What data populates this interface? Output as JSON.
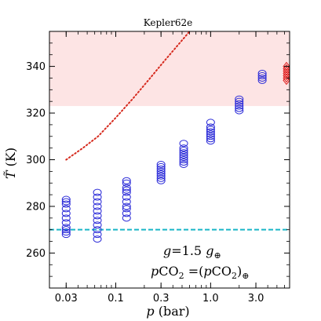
{
  "chart_data": {
    "type": "scatter",
    "title": "Kepler62e",
    "xlabel": "p (bar)",
    "ylabel": "T̃ (K)",
    "xscale": "log",
    "xlim": [
      0.02,
      6.8
    ],
    "ylim": [
      245,
      355
    ],
    "xticks": [
      {
        "value": 0.03,
        "label": "0.03"
      },
      {
        "value": 0.1,
        "label": "0.1"
      },
      {
        "value": 0.3,
        "label": "0.3"
      },
      {
        "value": 1.0,
        "label": "1.0"
      },
      {
        "value": 3.0,
        "label": "3.0"
      }
    ],
    "yticks": [
      260,
      280,
      300,
      320,
      340
    ],
    "shaded_band": {
      "ymin": 323,
      "ymax": 355,
      "color": "#fde4e4"
    },
    "hline": {
      "y": 270,
      "color": "#1ab6c8",
      "style": "dashed"
    },
    "dotted_curve": {
      "color": "#d62a1e",
      "x": [
        0.03,
        0.045,
        0.065,
        0.1,
        0.15,
        0.22,
        0.32,
        0.45,
        0.6
      ],
      "y": [
        300,
        305,
        310,
        318,
        326,
        334,
        342,
        349,
        355
      ]
    },
    "series": [
      {
        "marker": "circle",
        "color": "#2b2bd8",
        "x": [
          0.03,
          0.03,
          0.03,
          0.03,
          0.03,
          0.03,
          0.03,
          0.03,
          0.03,
          0.03,
          0.03,
          0.064,
          0.064,
          0.064,
          0.064,
          0.064,
          0.064,
          0.064,
          0.064,
          0.064,
          0.064,
          0.064,
          0.13,
          0.13,
          0.13,
          0.13,
          0.13,
          0.13,
          0.13,
          0.13,
          0.13,
          0.13,
          0.13,
          0.3,
          0.3,
          0.3,
          0.3,
          0.3,
          0.3,
          0.3,
          0.3,
          0.52,
          0.52,
          0.52,
          0.52,
          0.52,
          0.52,
          0.52,
          0.52,
          0.52,
          1.0,
          1.0,
          1.0,
          1.0,
          1.0,
          1.0,
          1.0,
          1.0,
          2.0,
          2.0,
          2.0,
          2.0,
          2.0,
          2.0,
          3.5,
          3.5,
          3.5,
          3.5
        ],
        "y": [
          283,
          281,
          279,
          277,
          275,
          273,
          271,
          270,
          269,
          268,
          282,
          286,
          284,
          282,
          280,
          278,
          276,
          274,
          272,
          270,
          268,
          266,
          291,
          290,
          288,
          287,
          286,
          284,
          282,
          280,
          279,
          277,
          275,
          298,
          297,
          296,
          295,
          294,
          293,
          292,
          291,
          307,
          305,
          304,
          303,
          302,
          301,
          300,
          299,
          298,
          316,
          314,
          313,
          312,
          311,
          310,
          309,
          308,
          326,
          325,
          324,
          323,
          322,
          321,
          337,
          336,
          335,
          334
        ]
      },
      {
        "marker": "diamond",
        "color": "#e02020",
        "x": [
          6.3,
          6.3,
          6.3,
          6.3,
          6.3,
          6.3,
          6.3
        ],
        "y": [
          340,
          339,
          338,
          337,
          336,
          335,
          334
        ]
      }
    ],
    "annotations": [
      {
        "text": "g=1.5 g⊕",
        "position": "lower-right"
      },
      {
        "text": "pCO₂ =(pCO₂)⊕",
        "position": "lower-right"
      }
    ]
  }
}
